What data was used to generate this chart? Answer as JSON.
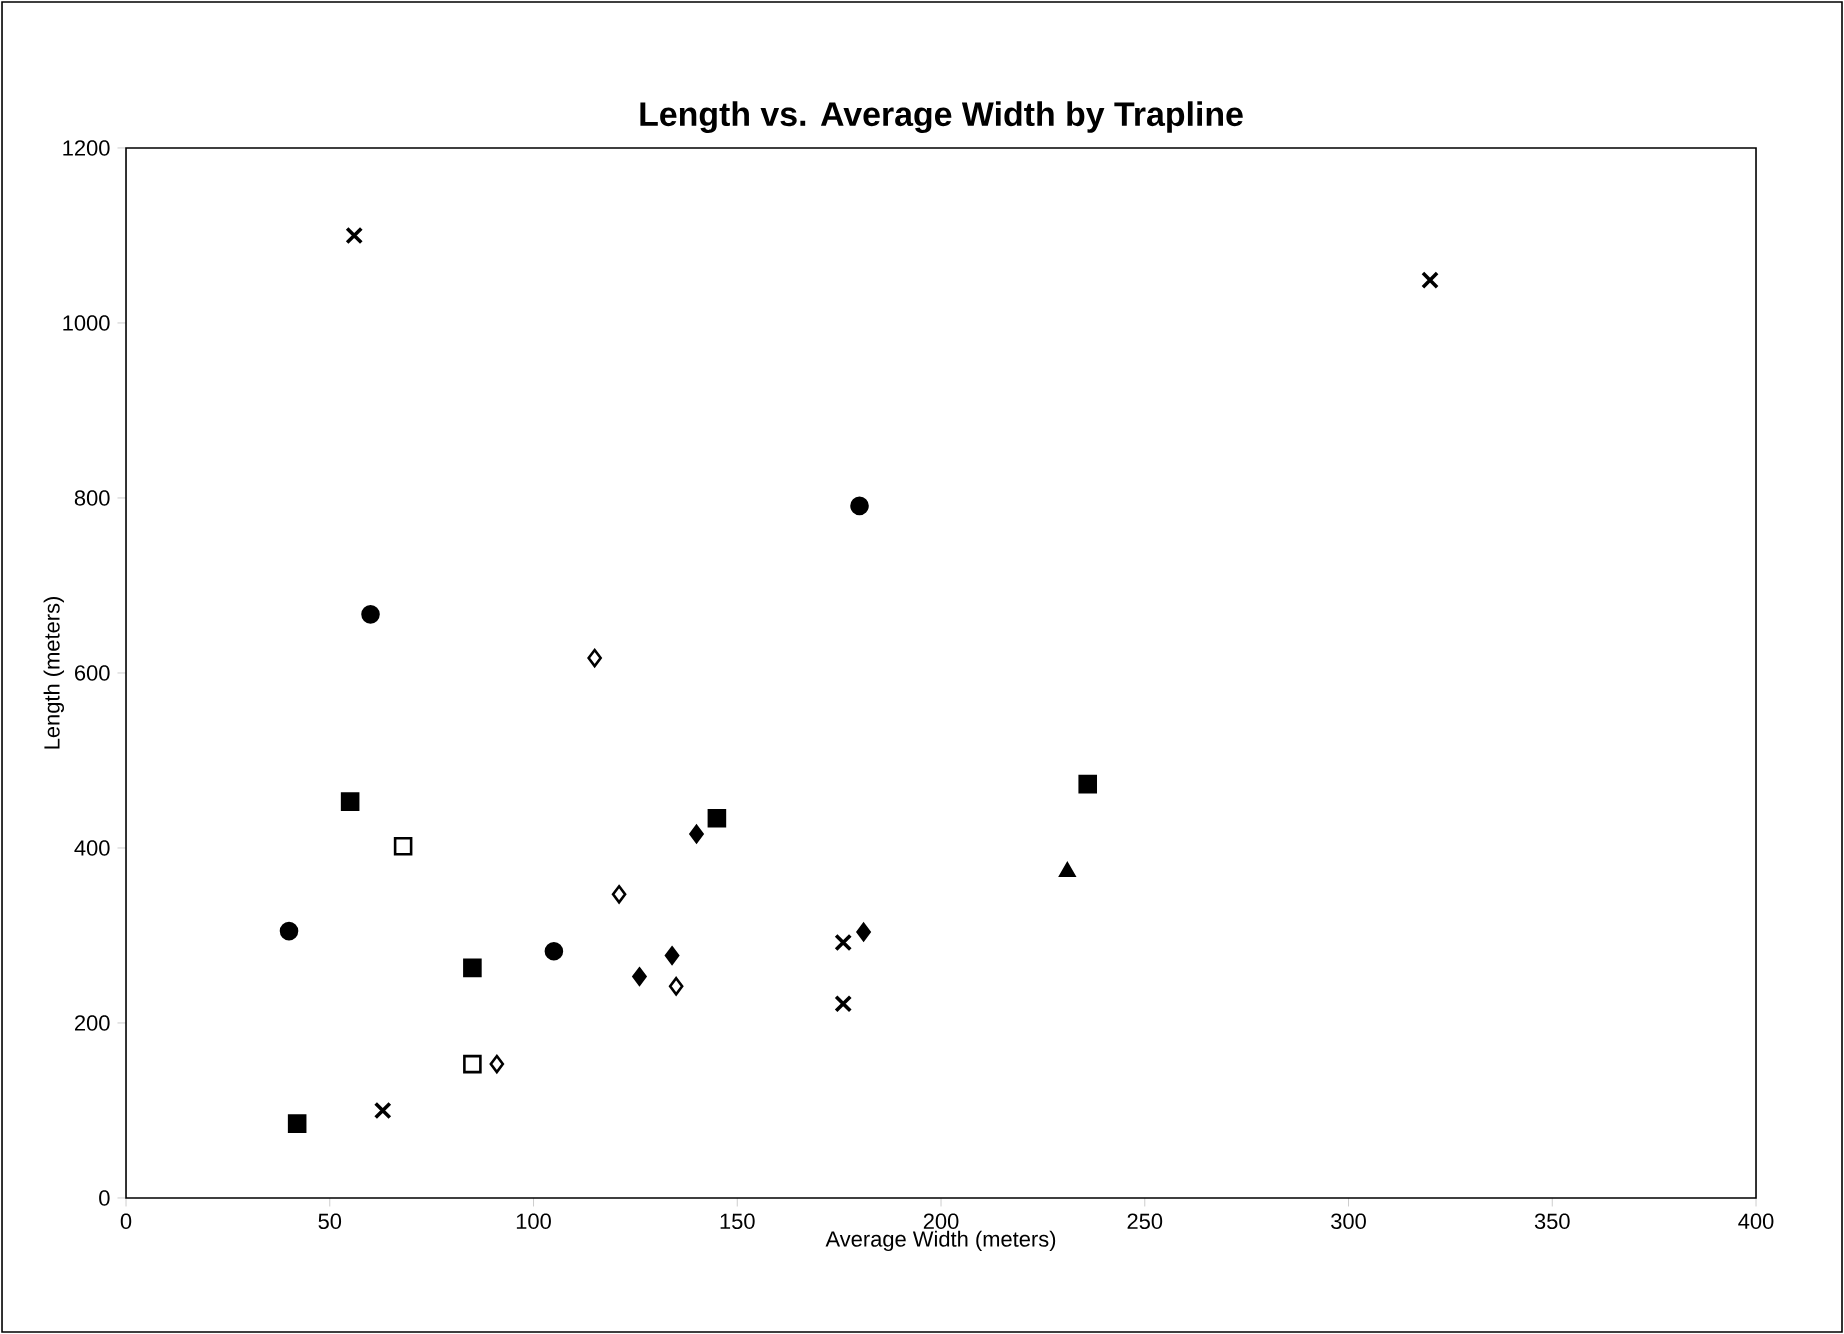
{
  "chart_data": {
    "type": "scatter",
    "title": "Length vs. Average Width by Trapline",
    "xlabel": "Average Width (meters)",
    "ylabel": "Length (meters)",
    "xlim": [
      0,
      400
    ],
    "xticks": [
      0,
      50,
      100,
      150,
      200,
      250,
      300,
      350,
      400
    ],
    "ylim": [
      0,
      1200
    ],
    "yticks": [
      0,
      200,
      400,
      600,
      800,
      1000,
      1200
    ],
    "grid": false,
    "series": [
      {
        "marker": "circle",
        "color": "#000000",
        "x": [
          40,
          60,
          105,
          180
        ],
        "values": [
          305,
          667,
          282,
          791
        ]
      },
      {
        "marker": "square",
        "color": "#000000",
        "x": [
          42,
          55,
          85,
          145,
          236
        ],
        "values": [
          85,
          453,
          263,
          434,
          473
        ]
      },
      {
        "marker": "square",
        "color": "#ffffff",
        "x": [
          68,
          85
        ],
        "values": [
          402,
          153
        ]
      },
      {
        "marker": "diamond",
        "color": "#ffffff",
        "x": [
          91,
          115,
          121,
          135
        ],
        "values": [
          153,
          617,
          347,
          242
        ]
      },
      {
        "marker": "diamond",
        "color": "#000000",
        "x": [
          126,
          134,
          140,
          181
        ],
        "values": [
          253,
          277,
          416,
          304
        ]
      },
      {
        "marker": "triangle",
        "color": "#000000",
        "x": [
          231
        ],
        "values": [
          373
        ]
      },
      {
        "marker": "cross",
        "color": "#000000",
        "x": [
          56,
          63,
          176,
          176,
          320
        ],
        "values": [
          1100,
          100,
          292,
          222,
          1049
        ]
      }
    ]
  }
}
